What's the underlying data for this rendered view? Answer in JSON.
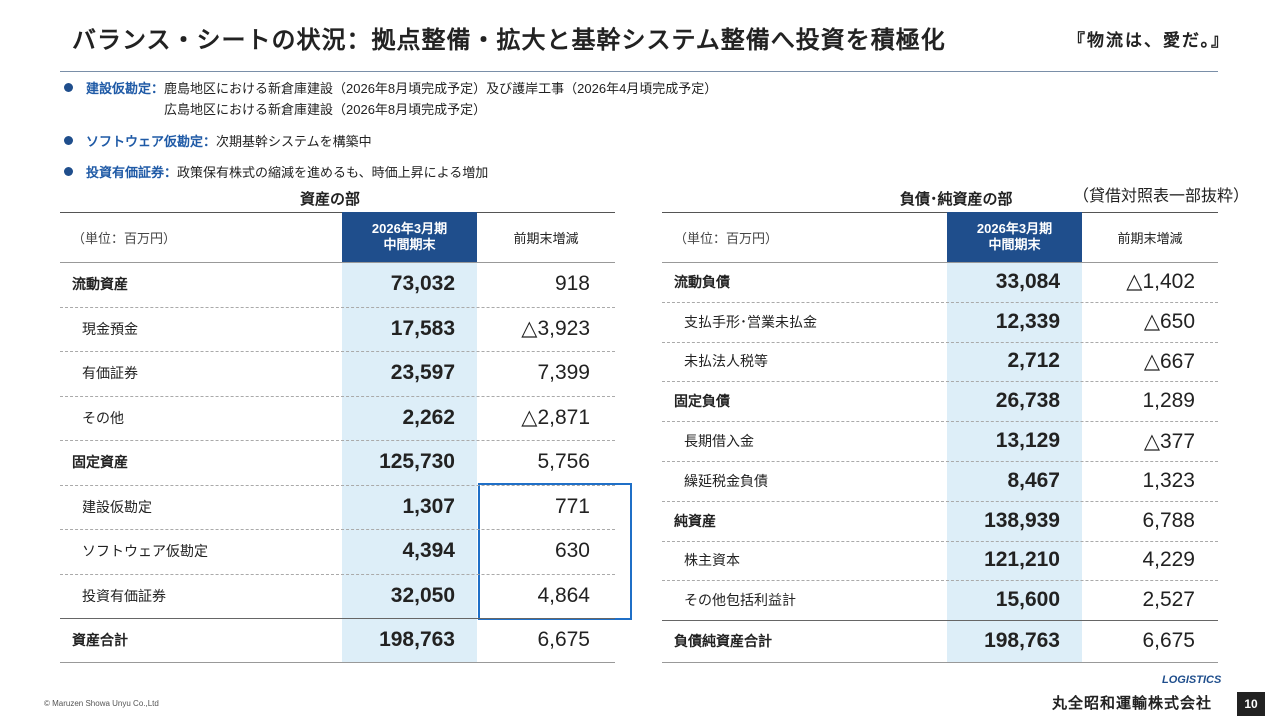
{
  "header": {
    "title": "バランス・シートの状況：拠点整備・拡大と基幹システム整備へ投資を積極化",
    "slogan": "『物流は、愛だ。』"
  },
  "bullets": [
    {
      "label": "建設仮勘定：",
      "lines": [
        "鹿島地区における新倉庫建設（2026年8月頃完成予定）及び護岸工事（2026年4月頃完成予定）",
        "広島地区における新倉庫建設（2026年8月頃完成予定）"
      ]
    },
    {
      "label": "ソフトウェア仮勘定：",
      "lines": [
        "次期基幹システムを構築中"
      ]
    },
    {
      "label": "投資有価証券：",
      "lines": [
        "政策保有株式の縮減を進めるも、時価上昇による増加"
      ]
    }
  ],
  "note": "（貸借対照表一部抜粋）",
  "tables": [
    {
      "title": "資産の部",
      "unit": "（単位：百万円）",
      "period": [
        "2026年3月期",
        "中間期末"
      ],
      "change_header": "前期末増減",
      "rows": [
        {
          "label": "流動資産",
          "value": "73,032",
          "change": "918",
          "level": 1
        },
        {
          "label": "現金預金",
          "value": "17,583",
          "change": "△3,923",
          "level": 2
        },
        {
          "label": "有価証券",
          "value": "23,597",
          "change": "7,399",
          "level": 2
        },
        {
          "label": "その他",
          "value": "2,262",
          "change": "△2,871",
          "level": 2
        },
        {
          "label": "固定資産",
          "value": "125,730",
          "change": "5,756",
          "level": 1
        },
        {
          "label": "建設仮勘定",
          "value": "1,307",
          "change": "771",
          "level": 2
        },
        {
          "label": "ソフトウェア仮勘定",
          "value": "4,394",
          "change": "630",
          "level": 2
        },
        {
          "label": "投資有価証券",
          "value": "32,050",
          "change": "4,864",
          "level": 2
        }
      ],
      "total": {
        "label": "資産合計",
        "value": "198,763",
        "change": "6,675"
      }
    },
    {
      "title": "負債･純資産の部",
      "unit": "（単位：百万円）",
      "period": [
        "2026年3月期",
        "中間期末"
      ],
      "change_header": "前期末増減",
      "rows": [
        {
          "label": "流動負債",
          "value": "33,084",
          "change": "△1,402",
          "level": 1
        },
        {
          "label": "支払手形･営業未払金",
          "value": "12,339",
          "change": "△650",
          "level": 2
        },
        {
          "label": "未払法人税等",
          "value": "2,712",
          "change": "△667",
          "level": 2
        },
        {
          "label": "固定負債",
          "value": "26,738",
          "change": "1,289",
          "level": 1
        },
        {
          "label": "長期借入金",
          "value": "13,129",
          "change": "△377",
          "level": 2
        },
        {
          "label": "繰延税金負債",
          "value": "8,467",
          "change": "1,323",
          "level": 2
        },
        {
          "label": "純資産",
          "value": "138,939",
          "change": "6,788",
          "level": 1
        },
        {
          "label": "株主資本",
          "value": "121,210",
          "change": "4,229",
          "level": 2
        },
        {
          "label": "その他包括利益計",
          "value": "15,600",
          "change": "2,527",
          "level": 2
        }
      ],
      "total": {
        "label": "負債純資産合計",
        "value": "198,763",
        "change": "6,675"
      }
    }
  ],
  "footer": {
    "copyright": "© Maruzen Showa Unyu Co.,Ltd",
    "logo": "LOGISTICS",
    "company": "丸全昭和運輸株式会社",
    "page": "10"
  }
}
